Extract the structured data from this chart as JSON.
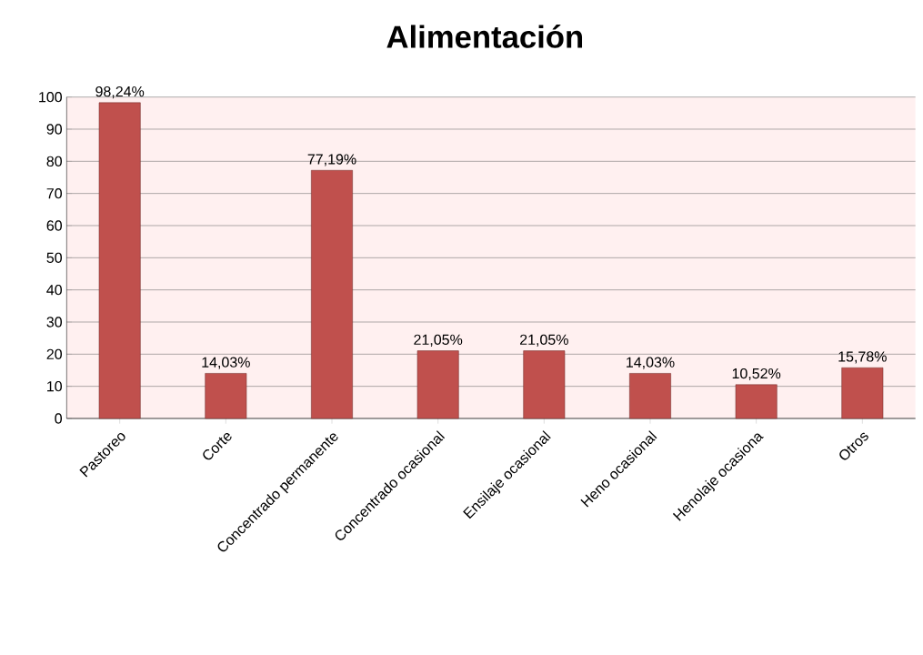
{
  "chart_data": {
    "type": "bar",
    "title": "Alimentación",
    "categories": [
      "Pastoreo",
      "Corte",
      "Concentrado permanente",
      "Concentrado ocasional",
      "Ensilaje ocasional",
      "Heno ocasional",
      "Henolaje ocasiona",
      "Otros"
    ],
    "values": [
      98.24,
      14.03,
      77.19,
      21.05,
      21.05,
      14.03,
      10.52,
      15.78
    ],
    "value_labels": [
      "98,24%",
      "14,03%",
      "77,19%",
      "21,05%",
      "21,05%",
      "14,03%",
      "10,52%",
      "15,78%"
    ],
    "color": "#c0504d",
    "ylim": [
      0,
      100
    ],
    "yticks": [
      0,
      10,
      20,
      30,
      40,
      50,
      60,
      70,
      80,
      90,
      100
    ],
    "grid": "y"
  }
}
